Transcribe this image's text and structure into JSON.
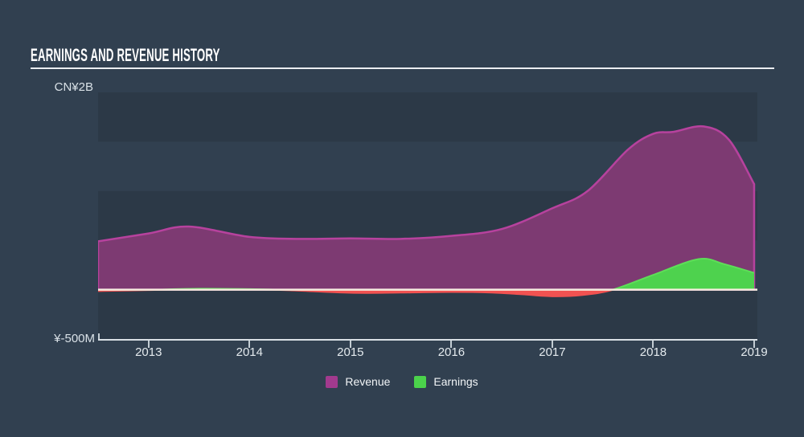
{
  "header": {
    "title": "EARNINGS AND REVENUE HISTORY"
  },
  "y_axis": {
    "top_label": "CN¥2B",
    "bottom_label": "¥-500M"
  },
  "x_axis": {
    "ticks": [
      "2013",
      "2014",
      "2015",
      "2016",
      "2017",
      "2018",
      "2019"
    ]
  },
  "legend": [
    {
      "label": "Revenue",
      "color": "#a23a8e"
    },
    {
      "label": "Earnings",
      "color": "#4bd24b"
    }
  ],
  "colors": {
    "page_background": "#314050",
    "grid_band_dark": "rgba(0,0,0,0.10)",
    "zero_line": "#f5ecdf",
    "axis_line": "#d9e0e5"
  },
  "chart_data": {
    "type": "area",
    "title": "Earnings and Revenue History",
    "currency": "CN¥",
    "unit": "billions CN¥",
    "ylim_B": [
      -0.5,
      2.0
    ],
    "xlim": [
      2012.5,
      2019.0
    ],
    "grid_band_step_B": 0.5,
    "x_tick_years": [
      2013,
      2014,
      2015,
      2016,
      2017,
      2018,
      2019
    ],
    "legend_position": "bottom-center",
    "series": [
      {
        "name": "Revenue",
        "fill": "#7d3a72",
        "line": "#b7429e",
        "points": [
          [
            2012.5,
            0.49
          ],
          [
            2013.0,
            0.57
          ],
          [
            2013.4,
            0.64
          ],
          [
            2014.0,
            0.535
          ],
          [
            2014.5,
            0.515
          ],
          [
            2015.0,
            0.52
          ],
          [
            2015.5,
            0.515
          ],
          [
            2016.0,
            0.545
          ],
          [
            2016.5,
            0.615
          ],
          [
            2017.0,
            0.825
          ],
          [
            2017.35,
            1.0
          ],
          [
            2017.75,
            1.42
          ],
          [
            2018.0,
            1.58
          ],
          [
            2018.2,
            1.6
          ],
          [
            2018.5,
            1.655
          ],
          [
            2018.75,
            1.52
          ],
          [
            2019.0,
            1.07
          ]
        ]
      },
      {
        "name": "Earnings",
        "fill_positive": "#4ed24e",
        "line_positive": "#5ede58",
        "fill_negative": "#f15251",
        "line_negative": "#f15251",
        "points": [
          [
            2012.5,
            -0.012
          ],
          [
            2013.0,
            -0.002
          ],
          [
            2013.5,
            0.01
          ],
          [
            2014.0,
            0.006
          ],
          [
            2014.4,
            -0.004
          ],
          [
            2015.0,
            -0.03
          ],
          [
            2015.5,
            -0.028
          ],
          [
            2016.0,
            -0.022
          ],
          [
            2016.4,
            -0.028
          ],
          [
            2016.7,
            -0.045
          ],
          [
            2017.0,
            -0.065
          ],
          [
            2017.3,
            -0.052
          ],
          [
            2017.6,
            0.0
          ],
          [
            2018.0,
            0.15
          ],
          [
            2018.45,
            0.31
          ],
          [
            2018.7,
            0.26
          ],
          [
            2019.0,
            0.17
          ]
        ]
      }
    ]
  }
}
